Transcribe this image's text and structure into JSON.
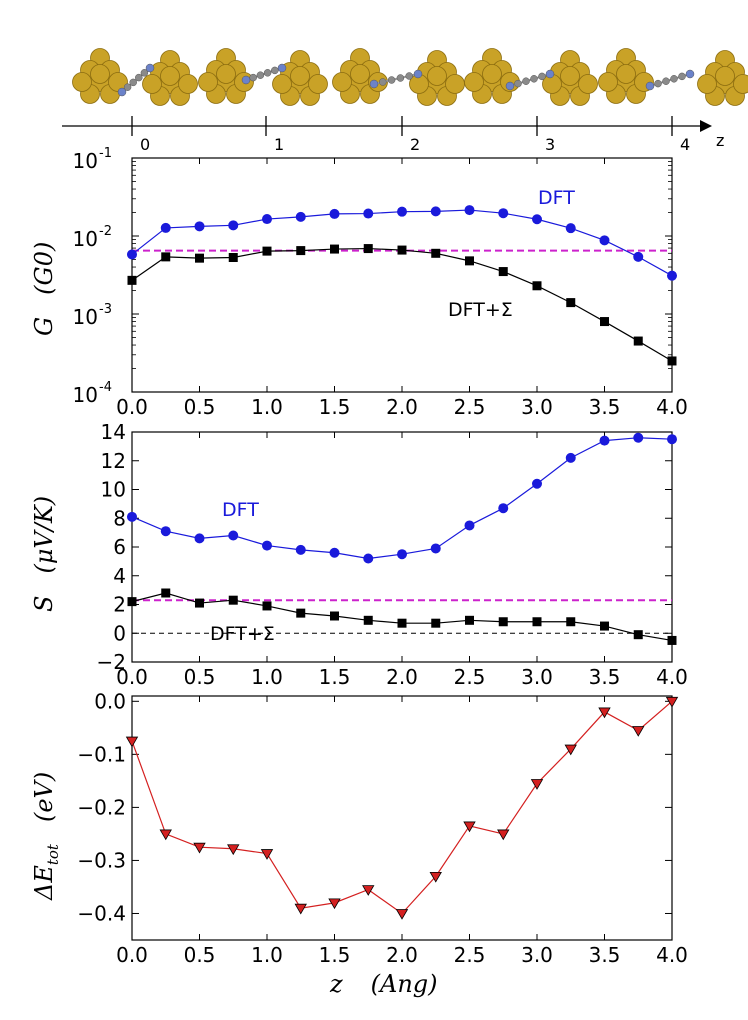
{
  "top_strip": {
    "ticks": [
      "0",
      "1",
      "2",
      "3",
      "4"
    ],
    "axis_label": "z"
  },
  "colors": {
    "dft": "#1a1adb",
    "dft_sigma": "#000000",
    "reference": "#cc22cc",
    "energy": "#d42020",
    "gold": "#c9a227",
    "carbon": "#8a8a8a",
    "nitrogen": "#6b82c9"
  },
  "chart_data": [
    {
      "type": "line",
      "id": "conductance",
      "yscale": "log",
      "ylabel": "G   (G0)",
      "ylabel_var": "G",
      "ylabel_unit": "(G0)",
      "xlim": [
        0.0,
        4.0
      ],
      "ylim_log10": [
        -4,
        -1
      ],
      "xticks": [
        "0.0",
        "0.5",
        "1.0",
        "1.5",
        "2.0",
        "2.5",
        "3.0",
        "3.5",
        "4.0"
      ],
      "yticks": [
        {
          "base": "10",
          "exp": "-1"
        },
        {
          "base": "10",
          "exp": "-2"
        },
        {
          "base": "10",
          "exp": "-3"
        },
        {
          "base": "10",
          "exp": "-4"
        }
      ],
      "x": [
        0.0,
        0.25,
        0.5,
        0.75,
        1.0,
        1.25,
        1.5,
        1.75,
        2.0,
        2.25,
        2.5,
        2.75,
        3.0,
        3.25,
        3.5,
        3.75,
        4.0
      ],
      "series": [
        {
          "name": "DFT",
          "label": "DFT",
          "marker": "circle",
          "color": "#1a1adb",
          "values": [
            0.0058,
            0.0127,
            0.0133,
            0.0137,
            0.0165,
            0.0176,
            0.0192,
            0.0194,
            0.0205,
            0.0207,
            0.0215,
            0.0196,
            0.0164,
            0.0126,
            0.0088,
            0.0054,
            0.0031
          ]
        },
        {
          "name": "DFT+Σ",
          "label": "DFT+Σ",
          "marker": "square",
          "color": "#000000",
          "values": [
            0.0027,
            0.0054,
            0.0052,
            0.0053,
            0.0064,
            0.0065,
            0.0068,
            0.0069,
            0.0066,
            0.006,
            0.0048,
            0.0035,
            0.0023,
            0.0014,
            0.0008,
            0.00045,
            0.00025
          ]
        }
      ],
      "reference_line": {
        "value": 0.0065,
        "style": "dashed",
        "color": "#cc22cc"
      }
    },
    {
      "type": "line",
      "id": "thermopower",
      "ylabel": "S   (μV/K)",
      "ylabel_var": "S",
      "ylabel_unit": "(μV/K)",
      "xlim": [
        0.0,
        4.0
      ],
      "ylim": [
        -2,
        14
      ],
      "xticks": [
        "0.0",
        "0.5",
        "1.0",
        "1.5",
        "2.0",
        "2.5",
        "3.0",
        "3.5",
        "4.0"
      ],
      "yticks": [
        "−2",
        "0",
        "2",
        "4",
        "6",
        "8",
        "10",
        "12",
        "14"
      ],
      "x": [
        0.0,
        0.25,
        0.5,
        0.75,
        1.0,
        1.25,
        1.5,
        1.75,
        2.0,
        2.25,
        2.5,
        2.75,
        3.0,
        3.25,
        3.5,
        3.75,
        4.0
      ],
      "series": [
        {
          "name": "DFT",
          "label": "DFT",
          "marker": "circle",
          "color": "#1a1adb",
          "values": [
            8.1,
            7.1,
            6.6,
            6.8,
            6.1,
            5.8,
            5.6,
            5.2,
            5.5,
            5.9,
            7.5,
            8.7,
            10.4,
            12.2,
            13.4,
            13.6,
            13.5
          ]
        },
        {
          "name": "DFT+Σ",
          "label": "DFT+Σ",
          "marker": "square",
          "color": "#000000",
          "values": [
            2.2,
            2.8,
            2.1,
            2.3,
            1.9,
            1.4,
            1.2,
            0.9,
            0.7,
            0.7,
            0.9,
            0.8,
            0.8,
            0.8,
            0.5,
            -0.1,
            -0.5
          ]
        }
      ],
      "reference_line": {
        "value": 2.3,
        "style": "dashed",
        "color": "#cc22cc"
      },
      "zero_line": {
        "value": 0,
        "style": "dashed",
        "color": "#000000"
      }
    },
    {
      "type": "line",
      "id": "energy",
      "ylabel": "ΔE_tot   (eV)",
      "ylabel_var": "ΔE",
      "ylabel_sub": "tot",
      "ylabel_unit": "(eV)",
      "xlabel": "z   (Ang)",
      "xlabel_var": "z",
      "xlabel_unit": "(Ang)",
      "xlim": [
        0.0,
        4.0
      ],
      "ylim": [
        -0.45,
        0.01
      ],
      "xticks": [
        "0.0",
        "0.5",
        "1.0",
        "1.5",
        "2.0",
        "2.5",
        "3.0",
        "3.5",
        "4.0"
      ],
      "yticks": [
        "0.0",
        "−0.1",
        "−0.2",
        "−0.3",
        "−0.4"
      ],
      "x": [
        0.0,
        0.25,
        0.5,
        0.75,
        1.0,
        1.25,
        1.5,
        1.75,
        2.0,
        2.25,
        2.5,
        2.75,
        3.0,
        3.25,
        3.5,
        3.75,
        4.0
      ],
      "series": [
        {
          "name": "ΔEtot",
          "marker": "triangle-down",
          "color": "#d42020",
          "values": [
            -0.075,
            -0.25,
            -0.275,
            -0.278,
            -0.287,
            -0.39,
            -0.38,
            -0.355,
            -0.4,
            -0.33,
            -0.235,
            -0.25,
            -0.155,
            -0.09,
            -0.02,
            -0.055,
            0.0
          ]
        }
      ]
    }
  ]
}
